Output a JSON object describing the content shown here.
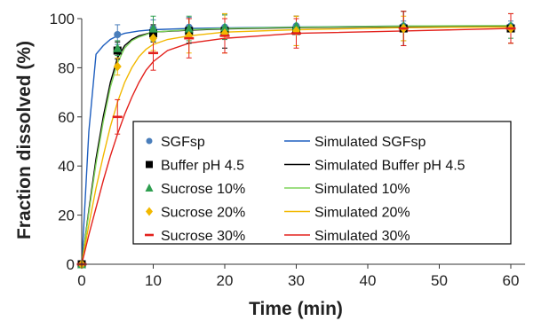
{
  "chart_data": {
    "type": "scatter",
    "xlabel": "Time (min)",
    "ylabel": "Fraction dissolved (%)",
    "xlim": [
      0,
      62
    ],
    "ylim": [
      0,
      100
    ],
    "xticks": [
      0,
      10,
      20,
      30,
      40,
      50,
      60
    ],
    "yticks": [
      0,
      20,
      40,
      60,
      80,
      100
    ],
    "grid": false,
    "legend_position": "bottom-center, inside plot",
    "series": [
      {
        "name": "SGFsp",
        "kind": "observed",
        "marker": "circle",
        "color": "#4a7ebb",
        "points": [
          [
            0,
            0,
            0
          ],
          [
            5,
            93.5,
            4
          ],
          [
            10,
            96,
            3.5
          ],
          [
            15,
            96.5,
            4
          ],
          [
            20,
            96.5,
            5
          ],
          [
            30,
            97,
            3
          ],
          [
            45,
            97,
            2
          ],
          [
            60,
            97,
            2
          ]
        ]
      },
      {
        "name": "Buffer pH 4.5",
        "kind": "observed",
        "marker": "square",
        "color": "#000000",
        "points": [
          [
            0,
            0,
            0
          ],
          [
            5,
            87,
            3.5
          ],
          [
            10,
            94,
            3.5
          ],
          [
            15,
            95,
            5
          ],
          [
            20,
            95,
            7
          ],
          [
            30,
            95,
            6
          ],
          [
            45,
            96,
            7
          ],
          [
            60,
            96,
            6
          ]
        ]
      },
      {
        "name": "Sucrose 10%",
        "kind": "observed",
        "marker": "triangle",
        "color": "#2e9e4f",
        "points": [
          [
            0,
            0,
            0
          ],
          [
            5,
            88,
            3
          ],
          [
            10,
            96,
            5
          ],
          [
            15,
            96,
            5
          ],
          [
            20,
            96.5,
            5
          ],
          [
            30,
            97,
            3
          ],
          [
            45,
            97,
            6
          ],
          [
            60,
            97,
            5
          ]
        ]
      },
      {
        "name": "Sucrose 20%",
        "kind": "observed",
        "marker": "diamond",
        "color": "#f2b800",
        "points": [
          [
            0,
            0,
            0
          ],
          [
            5,
            80.5,
            3.5
          ],
          [
            10,
            92,
            5
          ],
          [
            15,
            93,
            7
          ],
          [
            20,
            94,
            8
          ],
          [
            30,
            95,
            6
          ],
          [
            45,
            96,
            5
          ],
          [
            60,
            96,
            6
          ]
        ]
      },
      {
        "name": "Sucrose 30%",
        "kind": "observed",
        "marker": "dash",
        "color": "#e3211c",
        "points": [
          [
            0,
            0,
            0
          ],
          [
            5,
            60,
            7
          ],
          [
            10,
            86,
            7
          ],
          [
            15,
            92,
            8
          ],
          [
            20,
            93,
            7
          ],
          [
            30,
            94,
            6
          ],
          [
            45,
            96,
            7
          ],
          [
            60,
            96,
            6
          ]
        ]
      },
      {
        "name": "Simulated SGFsp",
        "kind": "simulated",
        "color": "#1f5fbf",
        "x": [
          0,
          1,
          2,
          3,
          4,
          5,
          6,
          8,
          10,
          15,
          20,
          30,
          45,
          60
        ],
        "y": [
          0,
          54,
          85.5,
          89,
          91.5,
          93,
          94,
          95,
          95.5,
          96,
          96.2,
          96.6,
          97,
          97
        ]
      },
      {
        "name": "Simulated Buffer pH 4.5",
        "kind": "simulated",
        "color": "#000000",
        "x": [
          0,
          1,
          2,
          3,
          4,
          5,
          6,
          7,
          8,
          10,
          15,
          20,
          30,
          45,
          60
        ],
        "y": [
          0,
          22,
          43,
          60,
          74,
          84,
          89,
          91.5,
          93,
          94.5,
          95.3,
          95.8,
          96.3,
          96.8,
          97
        ]
      },
      {
        "name": "Simulated 10%",
        "kind": "simulated",
        "color": "#7fd35a",
        "x": [
          0,
          1,
          2,
          3,
          4,
          5,
          6,
          7,
          8,
          10,
          15,
          20,
          30,
          45,
          60
        ],
        "y": [
          0,
          21,
          41,
          58,
          72,
          82,
          88,
          91,
          92.5,
          94.5,
          95.5,
          96,
          96.5,
          97,
          97.2
        ]
      },
      {
        "name": "Simulated 20%",
        "kind": "simulated",
        "color": "#f2b800",
        "x": [
          0,
          1,
          2,
          3,
          4,
          5,
          6,
          7,
          8,
          9,
          10,
          12,
          15,
          20,
          30,
          45,
          60
        ],
        "y": [
          0,
          16,
          31,
          44,
          56,
          66,
          74,
          80,
          84.5,
          87.5,
          89.5,
          91.5,
          93,
          94.5,
          95.5,
          96.3,
          96.6
        ]
      },
      {
        "name": "Simulated 30%",
        "kind": "simulated",
        "color": "#e3211c",
        "x": [
          0,
          1,
          2,
          3,
          4,
          5,
          6,
          7,
          8,
          9,
          10,
          12,
          15,
          20,
          25,
          30,
          45,
          60
        ],
        "y": [
          0,
          12,
          23,
          34,
          44,
          53,
          61,
          68,
          74,
          79,
          82.5,
          87,
          90,
          92,
          93,
          94,
          95,
          96
        ]
      }
    ]
  }
}
